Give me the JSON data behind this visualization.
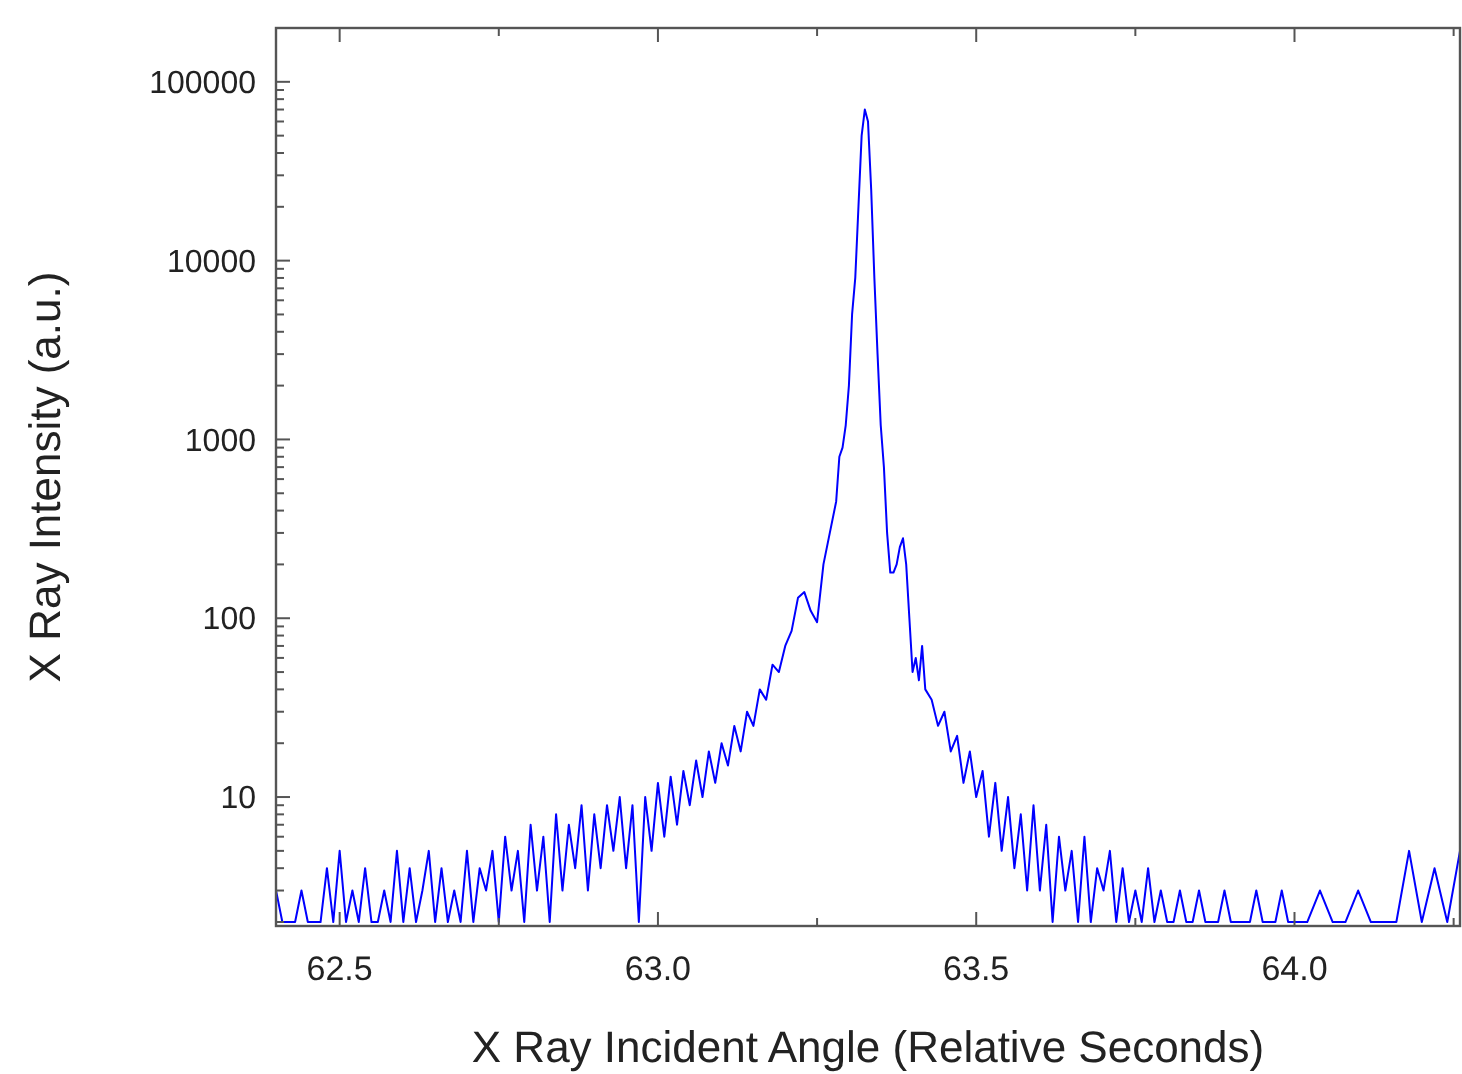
{
  "chart_data": {
    "type": "line",
    "xlabel": "X Ray Incident Angle (Relative Seconds)",
    "ylabel": "X Ray Intensity (a.u.)",
    "log": "y",
    "grid": false,
    "marker": "none",
    "line_style": "solid",
    "xlim": [
      62.4,
      64.26
    ],
    "ylim": [
      1.9,
      200000
    ],
    "xticks": [
      {
        "value": 62.5,
        "label": "62.5"
      },
      {
        "value": 62.75,
        "label": null
      },
      {
        "value": 63,
        "label": "63.0"
      },
      {
        "value": 63.25,
        "label": null
      },
      {
        "value": 63.5,
        "label": "63.5"
      },
      {
        "value": 63.75,
        "label": null
      },
      {
        "value": 64,
        "label": "64.0"
      },
      {
        "value": 64.25,
        "label": null
      }
    ],
    "yticks": [
      {
        "value": 2,
        "label": null
      },
      {
        "value": 3,
        "label": null
      },
      {
        "value": 4,
        "label": null
      },
      {
        "value": 5,
        "label": null
      },
      {
        "value": 6,
        "label": null
      },
      {
        "value": 7,
        "label": null
      },
      {
        "value": 8,
        "label": null
      },
      {
        "value": 9,
        "label": null
      },
      10,
      {
        "value": 20,
        "label": null
      },
      {
        "value": 30,
        "label": null
      },
      {
        "value": 40,
        "label": null
      },
      {
        "value": 50,
        "label": null
      },
      {
        "value": 60,
        "label": null
      },
      {
        "value": 70,
        "label": null
      },
      {
        "value": 80,
        "label": null
      },
      {
        "value": 90,
        "label": null
      },
      100,
      {
        "value": 200,
        "label": null
      },
      {
        "value": 300,
        "label": null
      },
      {
        "value": 400,
        "label": null
      },
      {
        "value": 500,
        "label": null
      },
      {
        "value": 600,
        "label": null
      },
      {
        "value": 700,
        "label": null
      },
      {
        "value": 800,
        "label": null
      },
      {
        "value": 900,
        "label": null
      },
      1000,
      {
        "value": 2000,
        "label": null
      },
      {
        "value": 3000,
        "label": null
      },
      {
        "value": 4000,
        "label": null
      },
      {
        "value": 5000,
        "label": null
      },
      {
        "value": 6000,
        "label": null
      },
      {
        "value": 7000,
        "label": null
      },
      {
        "value": 8000,
        "label": null
      },
      {
        "value": 9000,
        "label": null
      },
      10000,
      {
        "value": 20000,
        "label": null
      },
      {
        "value": 30000,
        "label": null
      },
      {
        "value": 40000,
        "label": null
      },
      {
        "value": 50000,
        "label": null
      },
      {
        "value": 60000,
        "label": null
      },
      {
        "value": 70000,
        "label": null
      },
      {
        "value": 80000,
        "label": null
      },
      {
        "value": 90000,
        "label": null
      },
      100000,
      {
        "value": 200000,
        "label": null
      }
    ],
    "x": [
      62.4,
      62.41,
      62.42,
      62.43,
      62.44,
      62.45,
      62.46,
      62.47,
      62.48,
      62.49,
      62.5,
      62.51,
      62.52,
      62.53,
      62.54,
      62.55,
      62.56,
      62.57,
      62.58,
      62.59,
      62.6,
      62.61,
      62.62,
      62.63,
      62.64,
      62.65,
      62.66,
      62.67,
      62.68,
      62.69,
      62.7,
      62.71,
      62.72,
      62.73,
      62.74,
      62.75,
      62.76,
      62.77,
      62.78,
      62.79,
      62.8,
      62.81,
      62.82,
      62.83,
      62.84,
      62.85,
      62.86,
      62.87,
      62.88,
      62.89,
      62.9,
      62.91,
      62.92,
      62.93,
      62.94,
      62.95,
      62.96,
      62.97,
      62.98,
      62.99,
      63.0,
      63.01,
      63.02,
      63.03,
      63.04,
      63.05,
      63.06,
      63.07,
      63.08,
      63.09,
      63.1,
      63.11,
      63.12,
      63.13,
      63.14,
      63.15,
      63.16,
      63.17,
      63.18,
      63.19,
      63.2,
      63.21,
      63.22,
      63.23,
      63.24,
      63.25,
      63.26,
      63.27,
      63.28,
      63.285,
      63.29,
      63.295,
      63.3,
      63.305,
      63.31,
      63.315,
      63.32,
      63.325,
      63.33,
      63.335,
      63.34,
      63.345,
      63.35,
      63.355,
      63.36,
      63.365,
      63.37,
      63.375,
      63.38,
      63.385,
      63.39,
      63.395,
      63.4,
      63.405,
      63.41,
      63.415,
      63.42,
      63.43,
      63.44,
      63.45,
      63.46,
      63.47,
      63.48,
      63.49,
      63.5,
      63.51,
      63.52,
      63.53,
      63.54,
      63.55,
      63.56,
      63.57,
      63.58,
      63.59,
      63.6,
      63.61,
      63.62,
      63.63,
      63.64,
      63.65,
      63.66,
      63.67,
      63.68,
      63.69,
      63.7,
      63.71,
      63.72,
      63.73,
      63.74,
      63.75,
      63.76,
      63.77,
      63.78,
      63.79,
      63.8,
      63.81,
      63.82,
      63.83,
      63.84,
      63.85,
      63.86,
      63.87,
      63.88,
      63.89,
      63.9,
      63.91,
      63.92,
      63.93,
      63.94,
      63.95,
      63.96,
      63.97,
      63.98,
      63.99,
      64.0,
      64.02,
      64.04,
      64.06,
      64.08,
      64.1,
      64.12,
      64.14,
      64.16,
      64.18,
      64.2,
      64.22,
      64.24,
      64.26
    ],
    "series": [
      {
        "color": "#0000ff",
        "values": [
          3,
          2,
          2,
          2,
          3,
          2,
          2,
          2,
          4,
          2,
          5,
          2,
          3,
          2,
          4,
          2,
          2,
          3,
          2,
          5,
          2,
          4,
          2,
          3,
          5,
          2,
          4,
          2,
          3,
          2,
          5,
          2,
          4,
          3,
          5,
          2,
          6,
          3,
          5,
          2,
          7,
          3,
          6,
          2,
          8,
          3,
          7,
          4,
          9,
          3,
          8,
          4,
          9,
          5,
          10,
          4,
          9,
          2,
          10,
          5,
          12,
          6,
          13,
          7,
          14,
          9,
          16,
          10,
          18,
          12,
          20,
          15,
          25,
          18,
          30,
          25,
          40,
          35,
          55,
          50,
          70,
          85,
          130,
          140,
          110,
          95,
          200,
          300,
          450,
          800,
          900,
          1200,
          2000,
          5000,
          8000,
          20000,
          50000,
          70000,
          60000,
          25000,
          8000,
          3000,
          1200,
          700,
          300,
          180,
          180,
          200,
          250,
          280,
          200,
          100,
          50,
          60,
          45,
          70,
          40,
          35,
          25,
          30,
          18,
          22,
          12,
          18,
          10,
          14,
          6,
          12,
          5,
          10,
          4,
          8,
          3,
          9,
          3,
          7,
          2,
          6,
          3,
          5,
          2,
          6,
          2,
          4,
          3,
          5,
          2,
          4,
          2,
          3,
          2,
          4,
          2,
          3,
          2,
          2,
          3,
          2,
          2,
          3,
          2,
          2,
          2,
          3,
          2,
          2,
          2,
          2,
          3,
          2,
          2,
          2,
          3,
          2,
          2,
          2,
          3,
          2,
          2,
          3,
          2,
          2,
          2,
          5,
          2,
          4,
          2,
          5
        ]
      }
    ]
  }
}
